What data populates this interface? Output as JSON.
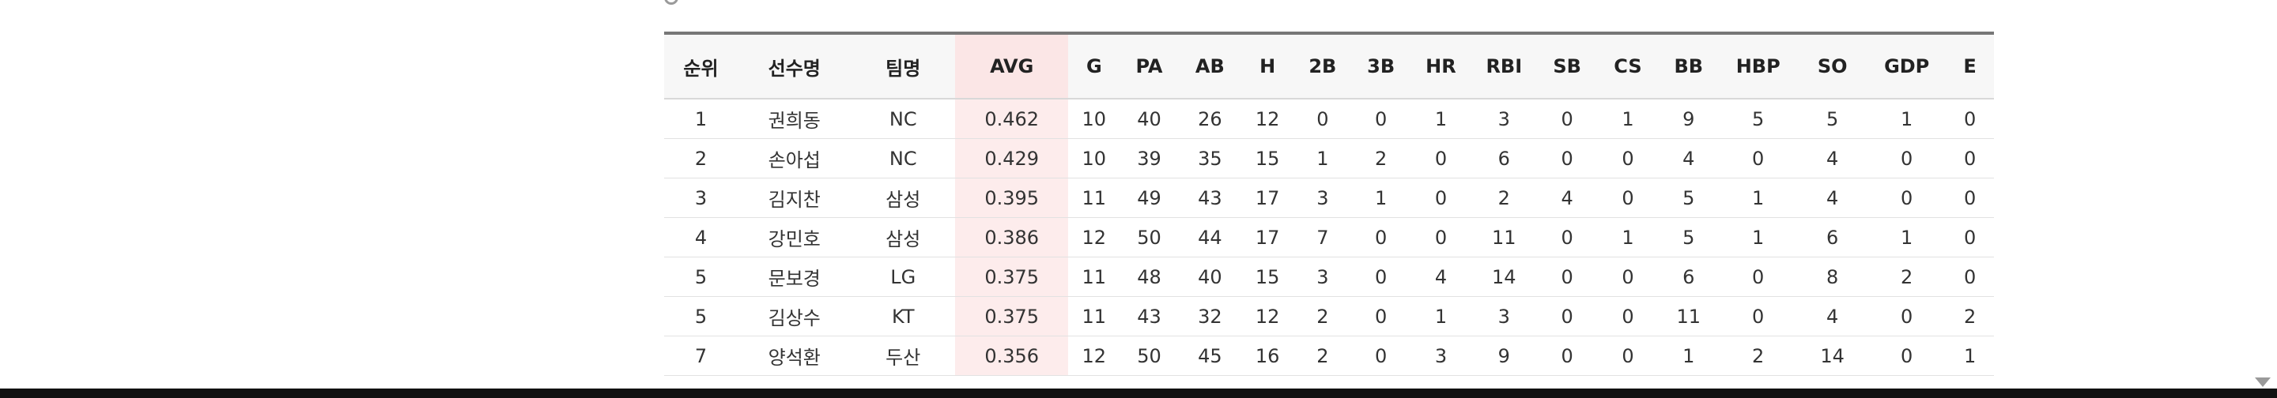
{
  "left_cut_text": "",
  "section_title": "",
  "columns": [
    "순위",
    "선수명",
    "팀명",
    "AVG",
    "G",
    "PA",
    "AB",
    "H",
    "2B",
    "3B",
    "HR",
    "RBI",
    "SB",
    "CS",
    "BB",
    "HBP",
    "SO",
    "GDP",
    "E"
  ],
  "rows": [
    [
      "1",
      "권희동",
      "NC",
      "0.462",
      "10",
      "40",
      "26",
      "12",
      "0",
      "0",
      "1",
      "3",
      "0",
      "1",
      "9",
      "5",
      "5",
      "1",
      "0"
    ],
    [
      "2",
      "손아섭",
      "NC",
      "0.429",
      "10",
      "39",
      "35",
      "15",
      "1",
      "2",
      "0",
      "6",
      "0",
      "0",
      "4",
      "0",
      "4",
      "0",
      "0"
    ],
    [
      "3",
      "김지찬",
      "삼성",
      "0.395",
      "11",
      "49",
      "43",
      "17",
      "3",
      "1",
      "0",
      "2",
      "4",
      "0",
      "5",
      "1",
      "4",
      "0",
      "0"
    ],
    [
      "4",
      "강민호",
      "삼성",
      "0.386",
      "12",
      "50",
      "44",
      "17",
      "7",
      "0",
      "0",
      "11",
      "0",
      "1",
      "5",
      "1",
      "6",
      "1",
      "0"
    ],
    [
      "5",
      "문보경",
      "LG",
      "0.375",
      "11",
      "48",
      "40",
      "15",
      "3",
      "0",
      "4",
      "14",
      "0",
      "0",
      "6",
      "0",
      "8",
      "2",
      "0"
    ],
    [
      "5",
      "김상수",
      "KT",
      "0.375",
      "11",
      "43",
      "32",
      "12",
      "2",
      "0",
      "1",
      "3",
      "0",
      "0",
      "11",
      "0",
      "4",
      "0",
      "2"
    ],
    [
      "7",
      "양석환",
      "두산",
      "0.356",
      "12",
      "50",
      "45",
      "16",
      "2",
      "0",
      "3",
      "9",
      "0",
      "0",
      "1",
      "2",
      "14",
      "0",
      "1"
    ]
  ],
  "colors": {
    "header_bg": "#f7f7f7",
    "avg_highlight": "#fdecec",
    "top_rule": "#777777"
  }
}
